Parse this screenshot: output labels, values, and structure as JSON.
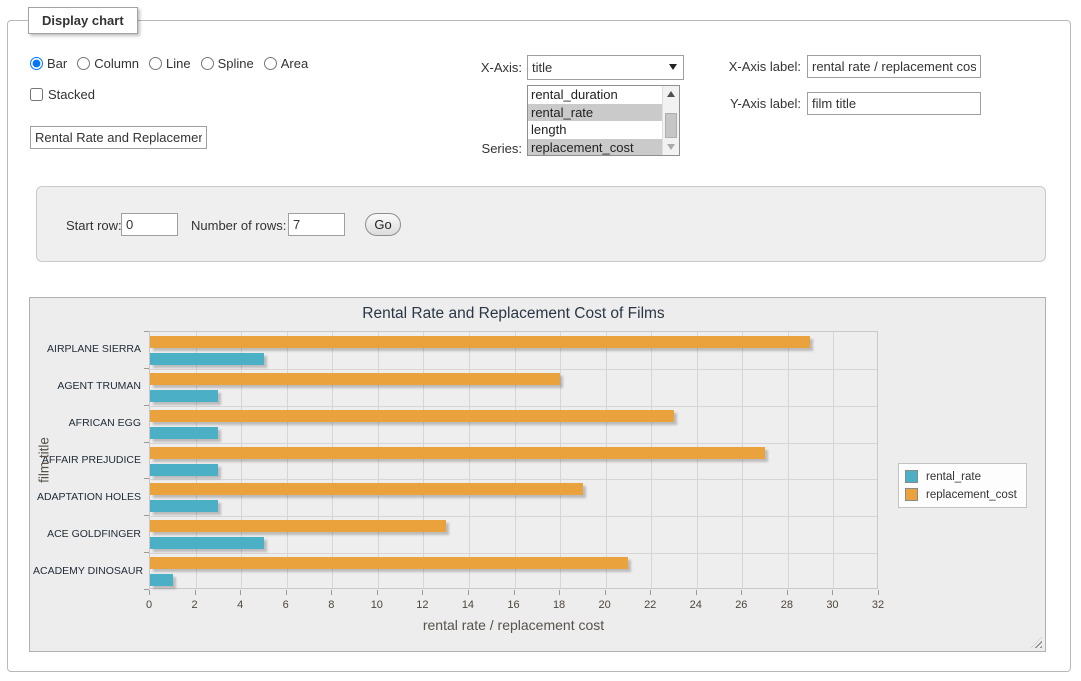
{
  "window": {
    "legend_title": "Display chart"
  },
  "controls": {
    "chart_types": {
      "options": [
        "Bar",
        "Column",
        "Line",
        "Spline",
        "Area"
      ],
      "selected": "Bar"
    },
    "stacked": {
      "label": "Stacked",
      "checked": false
    },
    "chart_title_input": {
      "value": "Rental Rate and Replacement Cost of Films"
    },
    "x_axis": {
      "label": "X-Axis:",
      "selected": "title"
    },
    "series": {
      "label": "Series:",
      "options": [
        "rental_duration",
        "rental_rate",
        "length",
        "replacement_cost"
      ],
      "selected": [
        "rental_rate",
        "replacement_cost"
      ]
    },
    "x_axis_label_field": {
      "label": "X-Axis label:",
      "value": "rental rate / replacement cost"
    },
    "y_axis_label_field": {
      "label": "Y-Axis label:",
      "value": "film title"
    }
  },
  "row_controls": {
    "start_row_label": "Start row:",
    "start_row_value": "0",
    "num_rows_label": "Number of rows:",
    "num_rows_value": "7",
    "go_label": "Go"
  },
  "chart_data": {
    "type": "bar",
    "orientation": "horizontal",
    "title": "Rental Rate and Replacement Cost of Films",
    "categories": [
      "AIRPLANE SIERRA",
      "AGENT TRUMAN",
      "AFRICAN EGG",
      "AFFAIR PREJUDICE",
      "ADAPTATION HOLES",
      "ACE GOLDFINGER",
      "ACADEMY DINOSAUR"
    ],
    "series": [
      {
        "name": "rental_rate",
        "color": "#4bb0c6",
        "values": [
          4.99,
          2.99,
          2.99,
          2.99,
          2.99,
          4.99,
          0.99
        ]
      },
      {
        "name": "replacement_cost",
        "color": "#e9a23c",
        "values": [
          28.99,
          17.99,
          22.99,
          26.99,
          18.99,
          12.99,
          20.99
        ]
      }
    ],
    "xlabel": "rental rate / replacement cost",
    "ylabel": "film title",
    "xlim": [
      0,
      32
    ],
    "xticks": [
      0,
      2,
      4,
      6,
      8,
      10,
      12,
      14,
      16,
      18,
      20,
      22,
      24,
      26,
      28,
      30,
      32
    ],
    "grid": true,
    "legend_position": "right",
    "plot_background": "#eeeeee"
  }
}
